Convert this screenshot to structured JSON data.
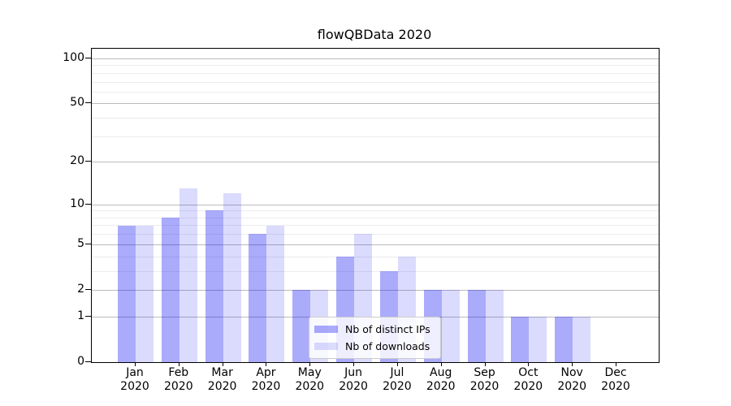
{
  "title": "flowQBData 2020",
  "chart_data": {
    "type": "bar",
    "title": "flowQBData 2020",
    "categories": [
      "Jan 2020",
      "Feb 2020",
      "Mar 2020",
      "Apr 2020",
      "May 2020",
      "Jun 2020",
      "Jul 2020",
      "Aug 2020",
      "Sep 2020",
      "Oct 2020",
      "Nov 2020",
      "Dec 2020"
    ],
    "x_labels": [
      [
        "Jan",
        "2020"
      ],
      [
        "Feb",
        "2020"
      ],
      [
        "Mar",
        "2020"
      ],
      [
        "Apr",
        "2020"
      ],
      [
        "May",
        "2020"
      ],
      [
        "Jun",
        "2020"
      ],
      [
        "Jul",
        "2020"
      ],
      [
        "Aug",
        "2020"
      ],
      [
        "Sep",
        "2020"
      ],
      [
        "Oct",
        "2020"
      ],
      [
        "Nov",
        "2020"
      ],
      [
        "Dec",
        "2020"
      ]
    ],
    "series": [
      {
        "name": "Nb of distinct IPs",
        "color": "rgba(10,10,245,0.34)",
        "values": [
          7,
          8,
          9,
          6,
          2,
          4,
          3,
          2,
          2,
          1,
          1,
          0
        ]
      },
      {
        "name": "Nb of downloads",
        "color": "rgba(10,10,245,0.145)",
        "values": [
          7,
          13,
          12,
          7,
          2,
          6,
          4,
          2,
          2,
          1,
          1,
          0
        ]
      }
    ],
    "y_scale": "symlog (position proportional to ln(1+value))",
    "y_ticks": [
      0,
      1,
      2,
      5,
      10,
      20,
      50,
      100
    ],
    "y_minor_ticks": [
      3,
      4,
      6,
      7,
      8,
      9,
      30,
      40,
      60,
      70,
      80,
      90
    ],
    "ylim": [
      0,
      100
    ],
    "grid": true,
    "legend_position": "lower center"
  },
  "colors": {
    "bar_dark": "rgba(10,10,245,0.34)",
    "bar_light": "rgba(10,10,245,0.145)",
    "grid_major": "#bbbbbb",
    "grid_minor": "#ececec",
    "spine": "#000000",
    "text": "#000000",
    "legend_border": "#cccccc",
    "legend_bg": "rgba(255,255,255,0.8)"
  }
}
